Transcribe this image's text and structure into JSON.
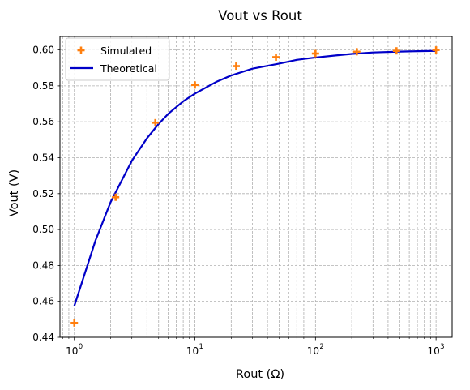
{
  "chart_data": {
    "type": "scatter",
    "title": "Vout vs Rout",
    "xlabel": "Rout (Ω)",
    "ylabel": "Vout (V)",
    "xscale": "log",
    "xlim": [
      0.76,
      1360
    ],
    "ylim": [
      0.44,
      0.6075
    ],
    "grid": true,
    "grid_style": "dashed",
    "grid_minor_x": true,
    "legend_position": "top-left",
    "x_ticks": [
      {
        "value": 1,
        "base": "10",
        "exp": "0"
      },
      {
        "value": 10,
        "base": "10",
        "exp": "1"
      },
      {
        "value": 100,
        "base": "10",
        "exp": "2"
      },
      {
        "value": 1000,
        "base": "10",
        "exp": "3"
      }
    ],
    "y_ticks": [
      {
        "value": 0.44,
        "label": "0.44"
      },
      {
        "value": 0.46,
        "label": "0.46"
      },
      {
        "value": 0.48,
        "label": "0.48"
      },
      {
        "value": 0.5,
        "label": "0.50"
      },
      {
        "value": 0.52,
        "label": "0.52"
      },
      {
        "value": 0.54,
        "label": "0.54"
      },
      {
        "value": 0.56,
        "label": "0.56"
      },
      {
        "value": 0.58,
        "label": "0.58"
      },
      {
        "value": 0.6,
        "label": "0.60"
      }
    ],
    "series": [
      {
        "name": "Simulated",
        "kind": "markers",
        "marker": "plus",
        "color": "#ff7f0e",
        "x": [
          1,
          2.2,
          4.7,
          10,
          22,
          47,
          100,
          220,
          470,
          1000
        ],
        "y": [
          0.448,
          0.518,
          0.5595,
          0.5805,
          0.591,
          0.596,
          0.598,
          0.599,
          0.5995,
          0.6
        ]
      },
      {
        "name": "Theoretical",
        "kind": "line",
        "color": "#0000c8",
        "x": [
          1,
          1.5,
          2,
          3,
          4,
          5,
          6,
          8,
          10,
          15,
          20,
          30,
          50,
          70,
          100,
          150,
          200,
          300,
          500,
          700,
          1000
        ],
        "y": [
          0.4575,
          0.494,
          0.5153,
          0.5383,
          0.5508,
          0.5588,
          0.5644,
          0.5714,
          0.5757,
          0.5822,
          0.5858,
          0.5896,
          0.5924,
          0.5945,
          0.5958,
          0.597,
          0.5978,
          0.5986,
          0.5991,
          0.5993,
          0.5995
        ]
      }
    ]
  }
}
